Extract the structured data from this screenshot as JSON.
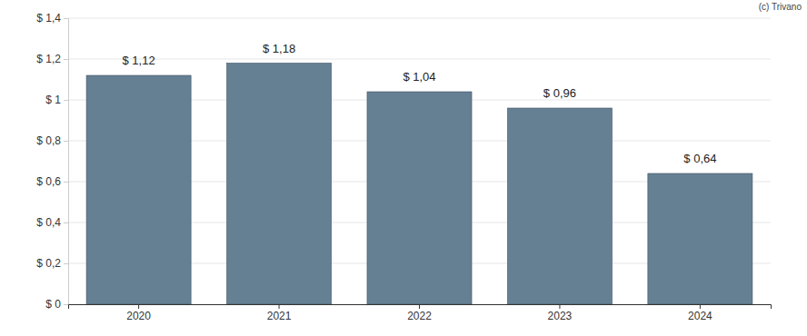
{
  "chart_data": {
    "type": "bar",
    "annotations": [
      "(c) Trivano"
    ],
    "categories": [
      "2020",
      "2021",
      "2022",
      "2023",
      "2024"
    ],
    "values": [
      1.12,
      1.18,
      1.04,
      0.96,
      0.64
    ],
    "value_labels": [
      "$ 1,12",
      "$ 1,18",
      "$ 1,04",
      "$ 0,96",
      "$ 0,64"
    ],
    "data_labels": true,
    "color": "#657f93",
    "ylim": [
      0,
      1.4
    ],
    "yticks": [
      {
        "value": 0,
        "label": "$ 0"
      },
      {
        "value": 0.2,
        "label": "$ 0,2"
      },
      {
        "value": 0.4,
        "label": "$ 0,4"
      },
      {
        "value": 0.6,
        "label": "$ 0,6"
      },
      {
        "value": 0.8,
        "label": "$ 0,8"
      },
      {
        "value": 1,
        "label": "$ 1"
      },
      {
        "value": 1.2,
        "label": "$ 1,2"
      },
      {
        "value": 1.4,
        "label": "$ 1,4"
      }
    ],
    "grid": true
  }
}
